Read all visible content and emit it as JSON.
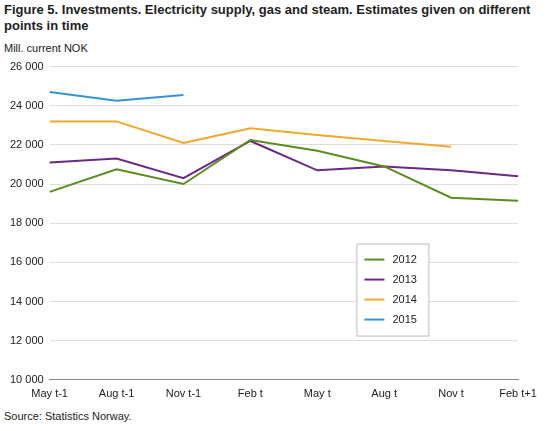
{
  "chart_data": {
    "type": "line",
    "title": "Figure 5. Investments.  Electricity supply, gas and steam. Estimates given on different points in time",
    "y_label": "Mill. current NOK",
    "source": "Source: Statistics Norway.",
    "categories": [
      "May t-1",
      "Aug t-1",
      "Nov t-1",
      "Feb t",
      "May t",
      "Aug t",
      "Nov t",
      "Feb t+1"
    ],
    "series": [
      {
        "name": "2012",
        "color": "#5b8c1e",
        "values": [
          19600,
          20750,
          20000,
          22250,
          21700,
          20900,
          19300,
          19150
        ]
      },
      {
        "name": "2013",
        "color": "#6a2a86",
        "values": [
          21100,
          21300,
          20300,
          22200,
          20700,
          20900,
          20700,
          20400
        ]
      },
      {
        "name": "2014",
        "color": "#f0a92e",
        "values": [
          23200,
          23200,
          22100,
          22850,
          22500,
          22200,
          21900,
          null
        ]
      },
      {
        "name": "2015",
        "color": "#3595d3",
        "values": [
          24700,
          24250,
          24550,
          null,
          null,
          null,
          null,
          null
        ]
      }
    ],
    "ylim": [
      10000,
      26000
    ],
    "yticks": [
      {
        "value": 10000,
        "label": "10 000"
      },
      {
        "value": 12000,
        "label": "12 000"
      },
      {
        "value": 14000,
        "label": "14 000"
      },
      {
        "value": 16000,
        "label": "16 000"
      },
      {
        "value": 18000,
        "label": "18 000"
      },
      {
        "value": 20000,
        "label": "20 000"
      },
      {
        "value": 22000,
        "label": "22 000"
      },
      {
        "value": 24000,
        "label": "24 000"
      },
      {
        "value": 26000,
        "label": "26 000"
      }
    ],
    "grid": true,
    "legend": "lower right"
  }
}
